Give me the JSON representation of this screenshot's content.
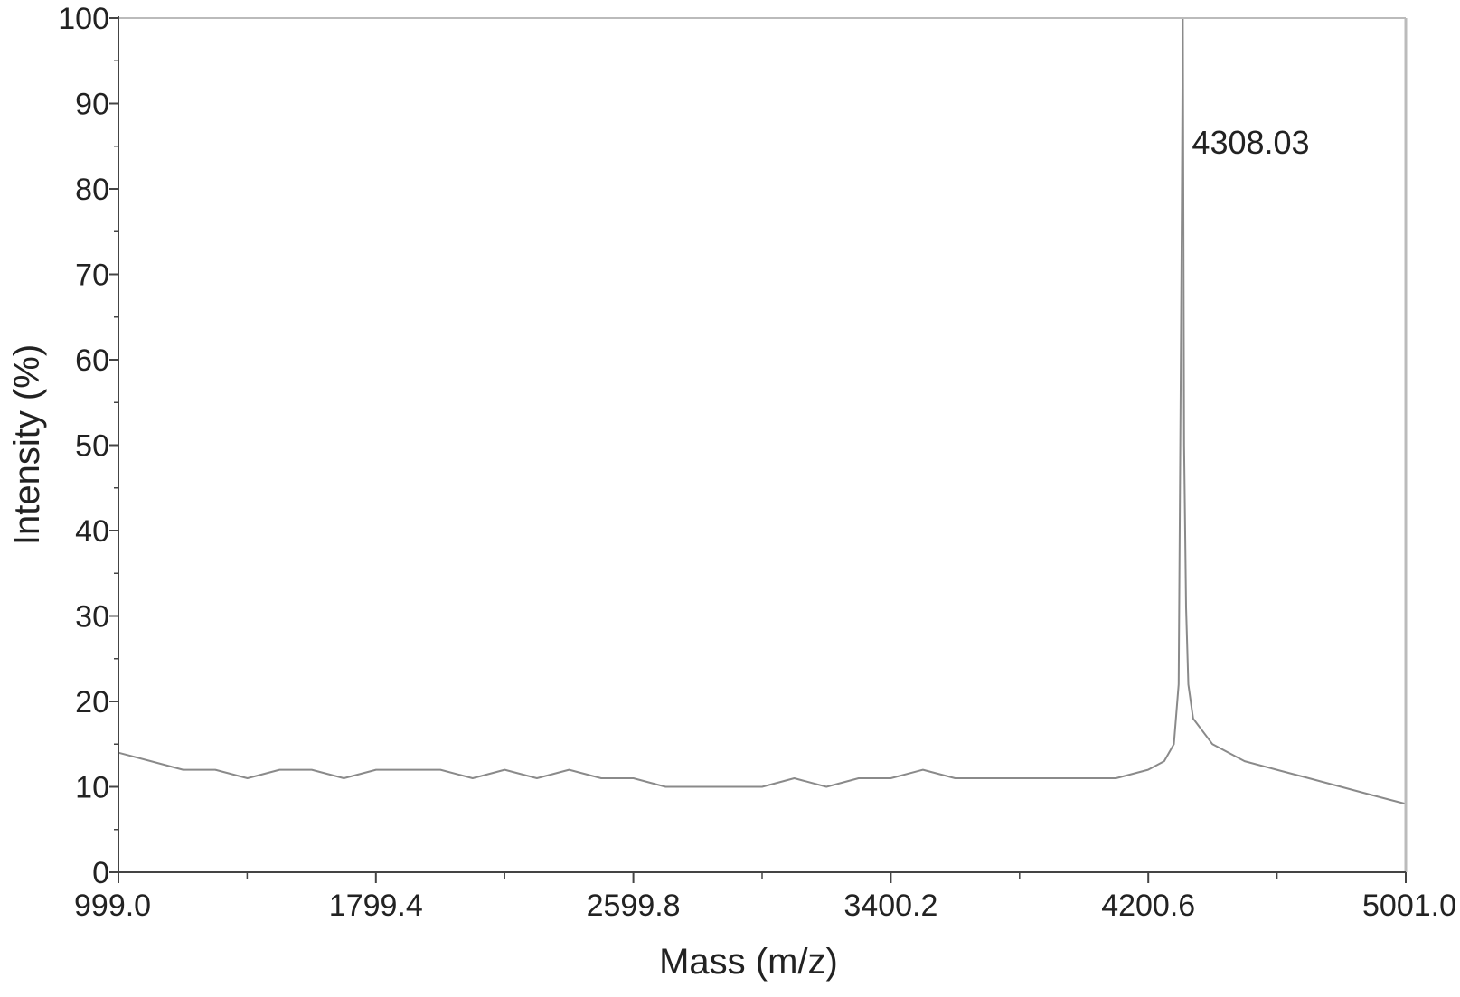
{
  "chart_data": {
    "type": "line",
    "title": "",
    "xlabel": "Mass (m/z)",
    "ylabel": "Intensity (%)",
    "xlim": [
      999.0,
      5001.0
    ],
    "ylim": [
      0,
      100
    ],
    "x_ticks": [
      "999.0",
      "1799.4",
      "2599.8",
      "3400.2",
      "4200.6",
      "5001.0"
    ],
    "x_tick_values": [
      999.0,
      1799.4,
      2599.8,
      3400.2,
      4200.6,
      5001.0
    ],
    "y_ticks": [
      "0",
      "10",
      "20",
      "30",
      "40",
      "50",
      "60",
      "70",
      "80",
      "90",
      "100"
    ],
    "y_tick_values": [
      0,
      10,
      20,
      30,
      40,
      50,
      60,
      70,
      80,
      90,
      100
    ],
    "grid": false,
    "series": [
      {
        "color": "#8a8a8a",
        "x": [
          999,
          1100,
          1200,
          1300,
          1400,
          1500,
          1600,
          1700,
          1800,
          1900,
          2000,
          2100,
          2200,
          2300,
          2400,
          2500,
          2600,
          2700,
          2800,
          2900,
          3000,
          3100,
          3200,
          3300,
          3400,
          3500,
          3600,
          3700,
          3800,
          3900,
          4000,
          4100,
          4200,
          4250,
          4280,
          4295,
          4300,
          4305,
          4308,
          4312,
          4318,
          4325,
          4340,
          4400,
          4500,
          4600,
          4700,
          4800,
          4900,
          5001
        ],
        "y": [
          14,
          13,
          12,
          12,
          11,
          12,
          12,
          11,
          12,
          12,
          12,
          11,
          12,
          11,
          12,
          11,
          11,
          10,
          10,
          10,
          10,
          11,
          10,
          11,
          11,
          12,
          11,
          11,
          11,
          11,
          11,
          11,
          12,
          13,
          15,
          22,
          50,
          78,
          100,
          50,
          31,
          22,
          18,
          15,
          13,
          12,
          11,
          10,
          9,
          8
        ]
      }
    ],
    "annotations": [
      {
        "text": "4308.03",
        "x": 4308.03,
        "y": 100
      }
    ]
  }
}
